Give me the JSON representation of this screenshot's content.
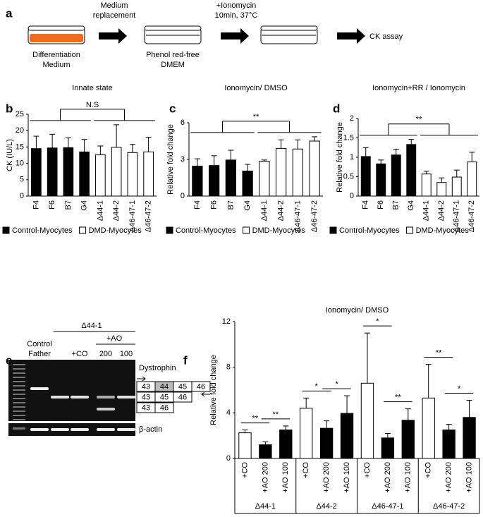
{
  "panel_a": {
    "panel": "a",
    "steps": [
      [
        "Differentiation",
        "Medium"
      ],
      [
        "Phenol red-free",
        "DMEM"
      ]
    ],
    "arrows": [
      [
        "Medium",
        "replacement"
      ],
      [
        "+Ionomycin",
        "10min, 37°C"
      ]
    ],
    "final": "CK assay"
  },
  "panel_e": {
    "panel": "e",
    "lane_header": "Δ44-1",
    "treatment": "+AO",
    "control": [
      "Control",
      "Father"
    ],
    "lanes": [
      "+CO",
      "200",
      "100"
    ],
    "gene": "Dystrophin",
    "loading": "β-actin",
    "exon_rows": [
      [
        "43",
        "44",
        "45",
        "46"
      ],
      [
        "43",
        "45",
        "46"
      ],
      [
        "43",
        "46"
      ]
    ]
  },
  "chart_data": [
    {
      "type": "bar",
      "panel": "b",
      "title": "Innate state",
      "ylabel": "CK (IU/L)",
      "categories": [
        "F4",
        "F6",
        "B7",
        "G4",
        "Δ44-1",
        "Δ44-2",
        "Δ46-47-1",
        "Δ46-47-2"
      ],
      "series": [
        {
          "name": "Control-Myocytes",
          "color": "#000000",
          "values": [
            14.5,
            14.7,
            14.8,
            13.5,
            null,
            null,
            null,
            null
          ],
          "errors": [
            3.8,
            4.2,
            3.0,
            3.8,
            null,
            null,
            null,
            null
          ]
        },
        {
          "name": "DMD-Myocytes",
          "color": "#ffffff",
          "values": [
            null,
            null,
            null,
            null,
            12.6,
            14.9,
            13.3,
            13.5
          ],
          "errors": [
            null,
            null,
            null,
            null,
            2.7,
            6.9,
            2.5,
            4.5
          ]
        }
      ],
      "ylim": [
        0,
        25
      ],
      "yticks": [
        0,
        5,
        10,
        15,
        20,
        25
      ],
      "significance": "N.S"
    },
    {
      "type": "bar",
      "panel": "c",
      "title": "Ionomycin/ DMSO",
      "ylabel": "Relative fold change",
      "categories": [
        "F4",
        "F6",
        "B7",
        "G4",
        "Δ44-1",
        "Δ44-2",
        "Δ46-47-1",
        "Δ46-47-2"
      ],
      "series": [
        {
          "name": "Control-Myocytes",
          "color": "#000000",
          "values": [
            2.45,
            2.5,
            2.95,
            2.05,
            null,
            null,
            null,
            null
          ],
          "errors": [
            0.6,
            0.8,
            0.8,
            0.55,
            null,
            null,
            null,
            null
          ]
        },
        {
          "name": "DMD-Myocytes",
          "color": "#ffffff",
          "values": [
            null,
            null,
            null,
            null,
            2.85,
            3.9,
            3.85,
            4.5
          ],
          "errors": [
            null,
            null,
            null,
            null,
            0.1,
            0.7,
            0.75,
            0.35
          ]
        }
      ],
      "ylim": [
        0,
        6
      ],
      "yticks": [
        0,
        3,
        6
      ],
      "significance": "**"
    },
    {
      "type": "bar",
      "panel": "d",
      "title": "Ionomycin+RR / Ionomycin",
      "ylabel": "Relative fold change",
      "categories": [
        "F4",
        "F6",
        "B7",
        "G4",
        "Δ44-1",
        "Δ44-2",
        "Δ46-47-1",
        "Δ46-47-2"
      ],
      "series": [
        {
          "name": "Control-Myocytes",
          "color": "#000000",
          "values": [
            1.02,
            0.83,
            1.06,
            1.33,
            null,
            null,
            null,
            null
          ],
          "errors": [
            0.23,
            0.1,
            0.15,
            0.13,
            null,
            null,
            null,
            null
          ]
        },
        {
          "name": "DMD-Myocytes",
          "color": "#ffffff",
          "values": [
            null,
            null,
            null,
            null,
            0.57,
            0.35,
            0.49,
            0.88
          ],
          "errors": [
            null,
            null,
            null,
            null,
            0.07,
            0.12,
            0.18,
            0.25
          ]
        }
      ],
      "ylim": [
        0,
        2
      ],
      "yticks": [
        0,
        0.5,
        1,
        1.5,
        2
      ],
      "significance": "**"
    },
    {
      "type": "grouped_bar",
      "panel": "f",
      "title": "Ionomycin/ DMSO",
      "ylabel": "Relative fold change",
      "bar_colors": [
        "#ffffff",
        "#000000",
        "#000000"
      ],
      "groups": [
        {
          "name": "Δ44-1",
          "categories": [
            "+CO",
            "+AO 200",
            "+AO 100"
          ],
          "values": [
            2.25,
            1.2,
            2.5
          ],
          "errors": [
            0.25,
            0.25,
            0.35
          ],
          "significance": [
            "**",
            "**"
          ]
        },
        {
          "name": "Δ44-2",
          "categories": [
            "+CO",
            "+AO 200",
            "+AO 100"
          ],
          "values": [
            4.4,
            2.65,
            3.95
          ],
          "errors": [
            0.9,
            0.65,
            1.55
          ],
          "significance": [
            "*",
            "*"
          ]
        },
        {
          "name": "Δ46-47-1",
          "categories": [
            "+CO",
            "+AO 200",
            "+AO 100"
          ],
          "values": [
            6.6,
            1.8,
            3.35
          ],
          "errors": [
            4.4,
            0.4,
            1.0
          ],
          "significance": [
            "*",
            "**"
          ]
        },
        {
          "name": "Δ46-47-2",
          "categories": [
            "+CO",
            "+AO 200",
            "+AO 100"
          ],
          "values": [
            5.3,
            2.5,
            3.6
          ],
          "errors": [
            2.95,
            0.5,
            1.5
          ],
          "significance": [
            "**",
            "*"
          ]
        }
      ],
      "ylim": [
        0,
        12
      ],
      "yticks": [
        0,
        4,
        8,
        12
      ]
    }
  ]
}
